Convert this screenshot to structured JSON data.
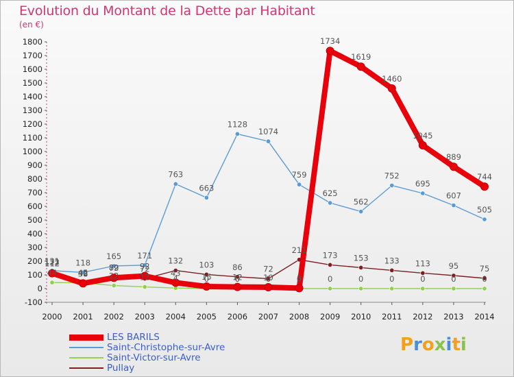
{
  "header": {
    "title": "Evolution du Montant de la Dette par Habitant",
    "unit": "(en €)"
  },
  "logo": {
    "letters": [
      {
        "ch": "P",
        "color": "#f0a21c"
      },
      {
        "ch": "r",
        "color": "#4a8fd8"
      },
      {
        "ch": "o",
        "color": "#f0a21c"
      },
      {
        "ch": "x",
        "color": "#8bc34a"
      },
      {
        "ch": "i",
        "color": "#4a8fd8"
      },
      {
        "ch": "t",
        "color": "#f0a21c"
      },
      {
        "ch": "i",
        "color": "#8bc34a"
      }
    ]
  },
  "chart_data": {
    "type": "line",
    "title": "Evolution du Montant de la Dette par Habitant",
    "subtitle": "(en €)",
    "xlabel": "",
    "ylabel": "",
    "x": [
      2000,
      2001,
      2002,
      2003,
      2004,
      2005,
      2006,
      2007,
      2008,
      2009,
      2010,
      2011,
      2012,
      2013,
      2014
    ],
    "ylim": [
      -100,
      1800
    ],
    "yticks": [
      -100,
      0,
      100,
      200,
      300,
      400,
      500,
      600,
      700,
      800,
      900,
      1000,
      1100,
      1200,
      1300,
      1400,
      1500,
      1600,
      1700,
      1800
    ],
    "grid": false,
    "legend_position": "bottom-left",
    "series": [
      {
        "name": "LES BARILS",
        "color": "#e8000b",
        "values": [
          112,
          38,
          79,
          92,
          43,
          15,
          12,
          10,
          3,
          1734,
          1619,
          1460,
          1045,
          889,
          744
        ],
        "labels": [
          "112",
          "38",
          "79",
          "92",
          "43",
          "15",
          "12",
          "10",
          "3",
          "1734",
          "1619",
          "1460",
          "1045",
          "889",
          "744"
        ]
      },
      {
        "name": "Saint-Christophe-sur-Avre",
        "color": "#5b9bd5",
        "values": [
          131,
          118,
          165,
          171,
          763,
          663,
          1128,
          1074,
          759,
          625,
          562,
          752,
          695,
          607,
          505
        ],
        "labels": [
          "131",
          "118",
          "165",
          "171",
          "763",
          "663",
          "1128",
          "1074",
          "759",
          "625",
          "562",
          "752",
          "695",
          "607",
          "505"
        ]
      },
      {
        "name": "Saint-Victor-sur-Avre",
        "color": "#8fd14f",
        "values": [
          44,
          42,
          22,
          12,
          4,
          0,
          0,
          0,
          0,
          0,
          0,
          0,
          0,
          0,
          0
        ],
        "labels": [
          "44",
          "42",
          "22",
          "12",
          "4",
          "0",
          "0",
          "0",
          "0",
          "0",
          "0",
          "0",
          "0",
          "0",
          "0"
        ]
      },
      {
        "name": "Pullay",
        "color": "#7b1f23",
        "values": [
          122,
          45,
          82,
          72,
          132,
          103,
          86,
          72,
          211,
          173,
          153,
          133,
          113,
          95,
          75
        ],
        "labels": [
          "122",
          "45",
          "82",
          "72",
          "132",
          "103",
          "86",
          "72",
          "211",
          "173",
          "153",
          "133",
          "113",
          "95",
          "75"
        ]
      }
    ]
  }
}
